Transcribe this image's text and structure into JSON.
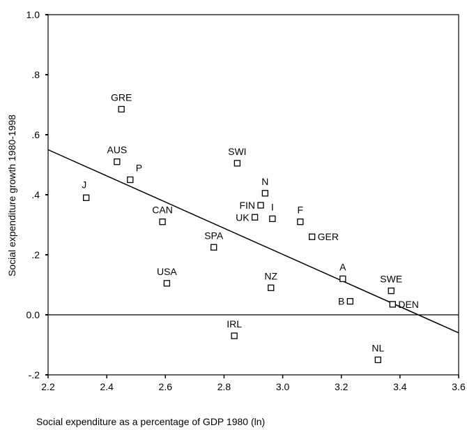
{
  "chart_data": {
    "type": "scatter",
    "xlabel": "Social expenditure as a percentage of GDP 1980 (ln)",
    "ylabel": "Social expenditure growth 1980-1998",
    "xlim": [
      2.2,
      3.6
    ],
    "ylim": [
      -0.2,
      1.0
    ],
    "x_ticks": [
      {
        "value": 2.2,
        "label": "2.2"
      },
      {
        "value": 2.4,
        "label": "2.4"
      },
      {
        "value": 2.6,
        "label": "2.6"
      },
      {
        "value": 2.8,
        "label": "2.8"
      },
      {
        "value": 3.0,
        "label": "3.0"
      },
      {
        "value": 3.2,
        "label": "3.2"
      },
      {
        "value": 3.4,
        "label": "3.4"
      },
      {
        "value": 3.6,
        "label": "3.6"
      }
    ],
    "y_ticks": [
      {
        "value": -0.2,
        "label": "-.2"
      },
      {
        "value": 0.0,
        "label": "0.0"
      },
      {
        "value": 0.2,
        "label": ".2"
      },
      {
        "value": 0.4,
        "label": ".4"
      },
      {
        "value": 0.6,
        "label": ".6"
      },
      {
        "value": 0.8,
        "label": ".8"
      },
      {
        "value": 1.0,
        "label": "1.0"
      }
    ],
    "reference_line_y": 0.0,
    "fit_line": {
      "x": [
        2.2,
        3.6
      ],
      "y": [
        0.55,
        -0.06
      ]
    },
    "points": [
      {
        "label": "GRE",
        "x": 2.45,
        "y": 0.685,
        "label_pos": "above"
      },
      {
        "label": "AUS",
        "x": 2.435,
        "y": 0.51,
        "label_pos": "above"
      },
      {
        "label": "P",
        "x": 2.48,
        "y": 0.45,
        "label_pos": "above-right"
      },
      {
        "label": "J",
        "x": 2.33,
        "y": 0.39,
        "label_pos": "above-left"
      },
      {
        "label": "CAN",
        "x": 2.59,
        "y": 0.31,
        "label_pos": "above"
      },
      {
        "label": "USA",
        "x": 2.605,
        "y": 0.105,
        "label_pos": "above"
      },
      {
        "label": "SPA",
        "x": 2.765,
        "y": 0.225,
        "label_pos": "above"
      },
      {
        "label": "SWI",
        "x": 2.845,
        "y": 0.505,
        "label_pos": "above"
      },
      {
        "label": "N",
        "x": 2.94,
        "y": 0.405,
        "label_pos": "above"
      },
      {
        "label": "FIN",
        "x": 2.925,
        "y": 0.365,
        "label_pos": "left"
      },
      {
        "label": "UK",
        "x": 2.905,
        "y": 0.325,
        "label_pos": "left"
      },
      {
        "label": "I",
        "x": 2.965,
        "y": 0.32,
        "label_pos": "above"
      },
      {
        "label": "F",
        "x": 3.06,
        "y": 0.31,
        "label_pos": "above"
      },
      {
        "label": "GER",
        "x": 3.1,
        "y": 0.26,
        "label_pos": "right"
      },
      {
        "label": "NZ",
        "x": 2.96,
        "y": 0.09,
        "label_pos": "above"
      },
      {
        "label": "IRL",
        "x": 2.835,
        "y": -0.07,
        "label_pos": "above"
      },
      {
        "label": "A",
        "x": 3.205,
        "y": 0.12,
        "label_pos": "above"
      },
      {
        "label": "B",
        "x": 3.23,
        "y": 0.045,
        "label_pos": "left"
      },
      {
        "label": "SWE",
        "x": 3.37,
        "y": 0.08,
        "label_pos": "above"
      },
      {
        "label": "DEN",
        "x": 3.375,
        "y": 0.035,
        "label_pos": "right"
      },
      {
        "label": "NL",
        "x": 3.325,
        "y": -0.15,
        "label_pos": "above"
      }
    ]
  }
}
